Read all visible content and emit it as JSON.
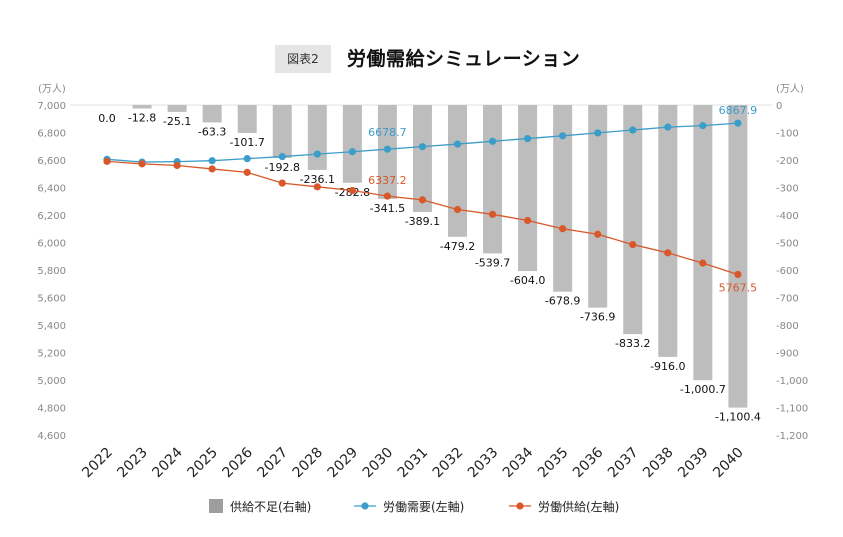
{
  "header": {
    "tag": "図表2",
    "title": "労働需給シミュレーション"
  },
  "colors": {
    "bar": "#bdbdbd",
    "demand": "#3b9dc9",
    "supply": "#d9582a",
    "legend_bar": "#9e9e9e"
  },
  "chart_data": {
    "type": "bar+line",
    "title": "労働需給シミュレーション",
    "categories": [
      "2022",
      "2023",
      "2024",
      "2025",
      "2026",
      "2027",
      "2028",
      "2029",
      "2030",
      "2031",
      "2032",
      "2033",
      "2034",
      "2035",
      "2036",
      "2037",
      "2038",
      "2039",
      "2040"
    ],
    "left_axis": {
      "unit": "(万人)",
      "min": 4600,
      "max": 7000,
      "ticks": [
        "7,000",
        "6,800",
        "6,600",
        "6,400",
        "6,200",
        "6,000",
        "5,800",
        "5,600",
        "5,400",
        "5,200",
        "5,000",
        "4,800",
        "4,600"
      ],
      "tick_values": [
        7000,
        6800,
        6600,
        6400,
        6200,
        6000,
        5800,
        5600,
        5400,
        5200,
        5000,
        4800,
        4600
      ]
    },
    "right_axis": {
      "unit": "(万人)",
      "min": -1200,
      "max": 0,
      "ticks": [
        "0",
        "-100",
        "-200",
        "-300",
        "-400",
        "-500",
        "-600",
        "-700",
        "-800",
        "-900",
        "-1,000",
        "-1,100",
        "-1,200"
      ],
      "tick_values": [
        0,
        -100,
        -200,
        -300,
        -400,
        -500,
        -600,
        -700,
        -800,
        -900,
        -1000,
        -1100,
        -1200
      ]
    },
    "series": [
      {
        "name": "供給不足(右軸)",
        "type": "bar",
        "axis": "right",
        "values": [
          0.0,
          -12.8,
          -25.1,
          -63.3,
          -101.7,
          -192.8,
          -236.1,
          -282.8,
          -341.5,
          -389.1,
          -479.2,
          -539.7,
          -604.0,
          -678.9,
          -736.9,
          -833.2,
          -916.0,
          -1000.7,
          -1100.4
        ],
        "labels": [
          "0.0",
          "-12.8",
          "-25.1",
          "-63.3",
          "-101.7",
          "-192.8",
          "-236.1",
          "-282.8",
          "-341.5",
          "-389.1",
          "-479.2",
          "-539.7",
          "-604.0",
          "-678.9",
          "-736.9",
          "-833.2",
          "-916.0",
          "-1,000.7",
          "-1,100.4"
        ]
      },
      {
        "name": "労働需要(左軸)",
        "type": "line",
        "axis": "left",
        "values": [
          6605,
          6585,
          6588,
          6595,
          6610,
          6625,
          6643,
          6660,
          6678.7,
          6697,
          6716,
          6736,
          6756,
          6776,
          6797,
          6818,
          6839,
          6850,
          6867.9
        ],
        "labels": {
          "8": "6678.7",
          "18": "6867.9"
        }
      },
      {
        "name": "労働供給(左軸)",
        "type": "line",
        "axis": "left",
        "values": [
          6590,
          6572,
          6560,
          6535,
          6510,
          6432,
          6405,
          6378,
          6337.2,
          6310,
          6240,
          6205,
          6160,
          6100,
          6060,
          5985,
          5925,
          5850,
          5767.5
        ],
        "labels": {
          "8": "6337.2",
          "18": "5767.5"
        }
      }
    ],
    "legend": [
      "供給不足(右軸)",
      "労働需要(左軸)",
      "労働供給(左軸)"
    ],
    "legend_position": "bottom",
    "grid": false
  }
}
